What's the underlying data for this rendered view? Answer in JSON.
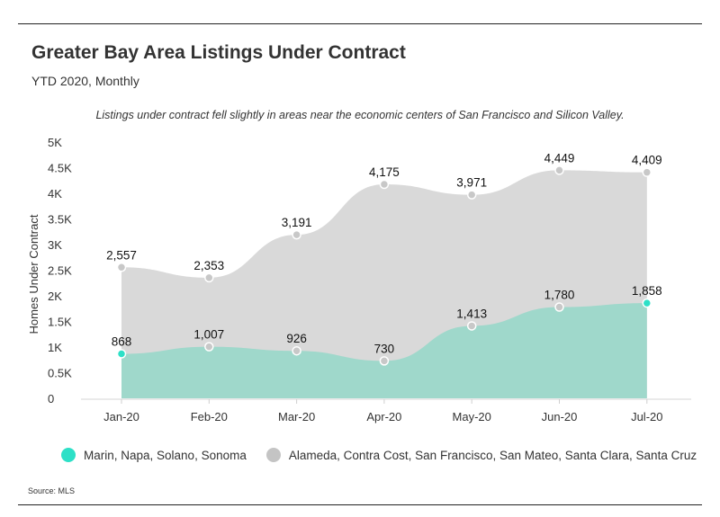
{
  "header": {
    "title": "Greater Bay Area Listings Under Contract",
    "subtitle": "YTD 2020, Monthly"
  },
  "annotation": "Listings under contract fell slightly in areas near the economic centers of San Francisco and Silicon Valley.",
  "source": "Source: MLS",
  "colors": {
    "series1": "#9fd8cb",
    "series1_dot": "#2de0c7",
    "series2": "#d9d9d9",
    "series2_dot": "#c4c4c4"
  },
  "chart_data": {
    "type": "area",
    "categories": [
      "Jan-20",
      "Feb-20",
      "Mar-20",
      "Apr-20",
      "May-20",
      "Jun-20",
      "Jul-20"
    ],
    "series": [
      {
        "name": "Marin, Napa, Solano, Sonoma",
        "values": [
          868,
          1007,
          926,
          730,
          1413,
          1780,
          1858
        ],
        "labels": [
          "868",
          "1,007",
          "926",
          "730",
          "1,413",
          "1,780",
          "1,858"
        ]
      },
      {
        "name": "Alameda, Contra Cost, San Francisco, San Mateo, Santa Clara, Santa Cruz",
        "values": [
          2557,
          2353,
          3191,
          4175,
          3971,
          4449,
          4409
        ],
        "labels": [
          "2,557",
          "2,353",
          "3,191",
          "4,175",
          "3,971",
          "4,449",
          "4,409"
        ]
      }
    ],
    "ylabel": "Homes Under Contract",
    "ylim": [
      0,
      5000
    ],
    "yticks": [
      0,
      500,
      1000,
      1500,
      2000,
      2500,
      3000,
      3500,
      4000,
      4500,
      5000
    ],
    "ytick_labels": [
      "0",
      "0.5K",
      "1K",
      "1.5K",
      "2K",
      "2.5K",
      "3K",
      "3.5K",
      "4K",
      "4.5K",
      "5K"
    ],
    "grid": false,
    "legend": "bottom"
  }
}
